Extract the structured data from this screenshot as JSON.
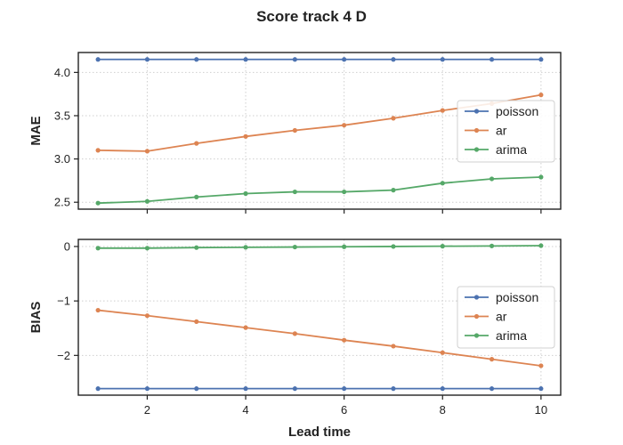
{
  "figure_title": "Score track 4 D",
  "chart_data": [
    {
      "type": "line",
      "ylabel": "MAE",
      "xlabel": "",
      "x": [
        1,
        2,
        3,
        4,
        5,
        6,
        7,
        8,
        9,
        10
      ],
      "xlim": [
        0.6,
        10.4
      ],
      "ylim": [
        2.42,
        4.23
      ],
      "xticks": [
        2,
        4,
        6,
        8,
        10
      ],
      "yticks": [
        2.5,
        3.0,
        3.5,
        4.0
      ],
      "ytick_labels": [
        "2.5",
        "3.0",
        "3.5",
        "4.0"
      ],
      "grid": true,
      "legend_position": "right",
      "series": [
        {
          "name": "poisson",
          "color": "#4c72b0",
          "values": [
            4.15,
            4.15,
            4.15,
            4.15,
            4.15,
            4.15,
            4.15,
            4.15,
            4.15,
            4.15
          ]
        },
        {
          "name": "ar",
          "color": "#dd8452",
          "values": [
            3.1,
            3.09,
            3.18,
            3.26,
            3.33,
            3.39,
            3.47,
            3.56,
            3.64,
            3.74
          ]
        },
        {
          "name": "arima",
          "color": "#55a868",
          "values": [
            2.49,
            2.51,
            2.56,
            2.6,
            2.62,
            2.62,
            2.64,
            2.72,
            2.77,
            2.79
          ]
        }
      ]
    },
    {
      "type": "line",
      "ylabel": "BIAS",
      "xlabel": "Lead time",
      "x": [
        1,
        2,
        3,
        4,
        5,
        6,
        7,
        8,
        9,
        10
      ],
      "xlim": [
        0.6,
        10.4
      ],
      "ylim": [
        -2.73,
        0.13
      ],
      "xticks": [
        2,
        4,
        6,
        8,
        10
      ],
      "yticks": [
        -2,
        -1,
        0
      ],
      "ytick_labels": [
        "−2",
        "−1",
        "0"
      ],
      "grid": true,
      "legend_position": "right",
      "series": [
        {
          "name": "poisson",
          "color": "#4c72b0",
          "values": [
            -2.61,
            -2.61,
            -2.61,
            -2.61,
            -2.61,
            -2.61,
            -2.61,
            -2.61,
            -2.61,
            -2.61
          ]
        },
        {
          "name": "ar",
          "color": "#dd8452",
          "values": [
            -1.17,
            -1.27,
            -1.38,
            -1.49,
            -1.6,
            -1.72,
            -1.83,
            -1.95,
            -2.07,
            -2.19
          ]
        },
        {
          "name": "arima",
          "color": "#55a868",
          "values": [
            -0.03,
            -0.03,
            -0.02,
            -0.015,
            -0.01,
            -0.005,
            0.0,
            0.005,
            0.01,
            0.015
          ]
        }
      ]
    }
  ]
}
